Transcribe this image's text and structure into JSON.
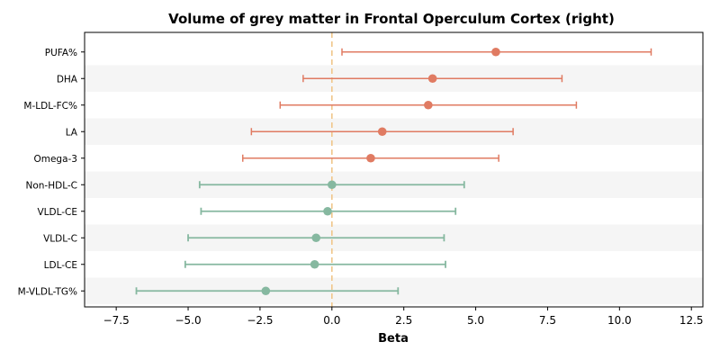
{
  "chart_data": {
    "type": "forest",
    "title": "Volume of grey matter in Frontal Operculum Cortex (right)",
    "xlabel": "Beta",
    "ylabel": "",
    "xlim": [
      -8.6,
      12.9
    ],
    "xticks": [
      -7.5,
      -5.0,
      -2.5,
      0.0,
      2.5,
      5.0,
      7.5,
      10.0,
      12.5
    ],
    "xtick_labels": [
      "−7.5",
      "−5.0",
      "−2.5",
      "0.0",
      "2.5",
      "5.0",
      "7.5",
      "10.0",
      "12.5"
    ],
    "reference_line": 0,
    "categories": [
      "PUFA%",
      "DHA",
      "M-LDL-FC%",
      "LA",
      "Omega-3",
      "Non-HDL-C",
      "VLDL-CE",
      "VLDL-C",
      "LDL-CE",
      "M-VLDL-TG%"
    ],
    "beta": [
      5.7,
      3.5,
      3.35,
      1.75,
      1.35,
      0.0,
      -0.15,
      -0.55,
      -0.6,
      -2.3
    ],
    "ci_low": [
      0.35,
      -1.0,
      -1.8,
      -2.8,
      -3.1,
      -4.6,
      -4.55,
      -5.0,
      -5.1,
      -6.8
    ],
    "ci_high": [
      11.1,
      8.0,
      8.5,
      6.3,
      5.8,
      4.6,
      4.3,
      3.9,
      3.95,
      2.3
    ],
    "colors": {
      "positive": "#e07b62",
      "neutral": "#86b8a0",
      "reference": "#f0c68a",
      "band": "#f5f5f5"
    },
    "point_color_group": [
      "positive",
      "positive",
      "positive",
      "positive",
      "positive",
      "neutral",
      "neutral",
      "neutral",
      "neutral",
      "neutral"
    ]
  }
}
